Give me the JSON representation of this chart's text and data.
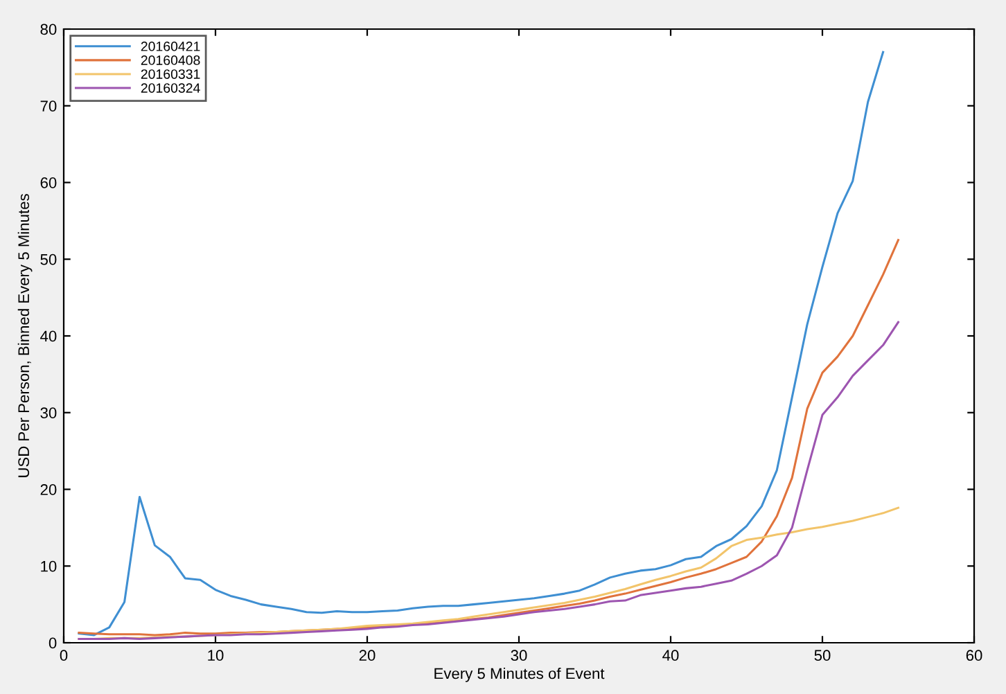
{
  "chart_data": {
    "type": "line",
    "xlabel": "Every 5 Minutes of Event",
    "ylabel": "USD Per Person, Binned Every 5 Minutes",
    "xlim": [
      0,
      60
    ],
    "ylim": [
      0,
      80
    ],
    "xticks": [
      0,
      10,
      20,
      30,
      40,
      50,
      60
    ],
    "yticks": [
      0,
      10,
      20,
      30,
      40,
      50,
      60,
      70,
      80
    ],
    "grid": false,
    "legend": "top left",
    "marker": "none",
    "line_style": "solid",
    "series": [
      {
        "name": "20160421",
        "color": "#3f8fd2",
        "x": [
          1,
          2,
          3,
          4,
          5,
          6,
          7,
          8,
          9,
          10,
          11,
          12,
          13,
          14,
          15,
          16,
          17,
          18,
          19,
          20,
          21,
          22,
          23,
          24,
          25,
          26,
          27,
          28,
          29,
          30,
          31,
          32,
          33,
          34,
          35,
          36,
          37,
          38,
          39,
          40,
          41,
          42,
          43,
          44,
          45,
          46,
          47,
          48,
          49,
          50,
          51,
          52,
          53,
          54
        ],
        "values": [
          1.2,
          1.0,
          2.0,
          5.3,
          19.0,
          12.7,
          11.2,
          8.4,
          8.2,
          6.9,
          6.1,
          5.6,
          5.0,
          4.7,
          4.4,
          4.0,
          3.9,
          4.1,
          4.0,
          4.0,
          4.1,
          4.2,
          4.5,
          4.7,
          4.8,
          4.8,
          5.0,
          5.2,
          5.4,
          5.6,
          5.8,
          6.1,
          6.4,
          6.8,
          7.6,
          8.5,
          9.0,
          9.4,
          9.6,
          10.1,
          10.9,
          11.2,
          12.6,
          13.5,
          15.2,
          17.8,
          22.5,
          32.0,
          41.5,
          49.0,
          56.0,
          60.2,
          70.5,
          77.0
        ]
      },
      {
        "name": "20160408",
        "color": "#e0733c",
        "x": [
          1,
          2,
          3,
          4,
          5,
          6,
          7,
          8,
          9,
          10,
          11,
          12,
          13,
          14,
          15,
          16,
          17,
          18,
          19,
          20,
          21,
          22,
          23,
          24,
          25,
          26,
          27,
          28,
          29,
          30,
          31,
          32,
          33,
          34,
          35,
          36,
          37,
          38,
          39,
          40,
          41,
          42,
          43,
          44,
          45,
          46,
          47,
          48,
          49,
          50,
          51,
          52,
          53,
          54,
          55
        ],
        "values": [
          1.3,
          1.2,
          1.1,
          1.1,
          1.1,
          1.0,
          1.1,
          1.3,
          1.2,
          1.2,
          1.3,
          1.3,
          1.4,
          1.4,
          1.5,
          1.6,
          1.7,
          1.8,
          1.9,
          2.0,
          2.1,
          2.3,
          2.4,
          2.5,
          2.7,
          2.9,
          3.1,
          3.3,
          3.6,
          3.9,
          4.2,
          4.5,
          4.8,
          5.1,
          5.5,
          6.0,
          6.4,
          6.9,
          7.4,
          7.9,
          8.5,
          9.0,
          9.6,
          10.4,
          11.2,
          13.2,
          16.5,
          21.5,
          30.5,
          35.2,
          37.3,
          40.0,
          44.0,
          48.0,
          52.5
        ]
      },
      {
        "name": "20160331",
        "color": "#f2c46a",
        "x": [
          1,
          2,
          3,
          4,
          5,
          6,
          7,
          8,
          9,
          10,
          11,
          12,
          13,
          14,
          15,
          16,
          17,
          18,
          19,
          20,
          21,
          22,
          23,
          24,
          25,
          26,
          27,
          28,
          29,
          30,
          31,
          32,
          33,
          34,
          35,
          36,
          37,
          38,
          39,
          40,
          41,
          42,
          43,
          44,
          45,
          46,
          47,
          48,
          49,
          50,
          51,
          52,
          53,
          54,
          55
        ],
        "values": [
          0.5,
          0.5,
          0.6,
          0.6,
          0.6,
          0.7,
          0.8,
          0.8,
          0.9,
          1.0,
          1.1,
          1.2,
          1.3,
          1.4,
          1.5,
          1.6,
          1.7,
          1.8,
          2.0,
          2.2,
          2.3,
          2.4,
          2.5,
          2.7,
          2.9,
          3.1,
          3.4,
          3.7,
          4.0,
          4.3,
          4.6,
          4.9,
          5.2,
          5.6,
          6.0,
          6.5,
          7.0,
          7.6,
          8.2,
          8.7,
          9.3,
          9.8,
          11.0,
          12.6,
          13.4,
          13.7,
          14.1,
          14.4,
          14.8,
          15.1,
          15.5,
          15.9,
          16.4,
          16.9,
          17.6
        ]
      },
      {
        "name": "20160324",
        "color": "#9d55b0",
        "x": [
          1,
          2,
          3,
          4,
          5,
          6,
          7,
          8,
          9,
          10,
          11,
          12,
          13,
          14,
          15,
          16,
          17,
          18,
          19,
          20,
          21,
          22,
          23,
          24,
          25,
          26,
          27,
          28,
          29,
          30,
          31,
          32,
          33,
          34,
          35,
          36,
          37,
          38,
          39,
          40,
          41,
          42,
          43,
          44,
          45,
          46,
          47,
          48,
          49,
          50,
          51,
          52,
          53,
          54,
          55
        ],
        "values": [
          0.5,
          0.5,
          0.5,
          0.6,
          0.5,
          0.6,
          0.7,
          0.8,
          0.9,
          1.0,
          1.0,
          1.1,
          1.1,
          1.2,
          1.3,
          1.4,
          1.5,
          1.6,
          1.7,
          1.8,
          2.0,
          2.1,
          2.3,
          2.4,
          2.6,
          2.8,
          3.0,
          3.2,
          3.4,
          3.7,
          4.0,
          4.2,
          4.4,
          4.7,
          5.0,
          5.4,
          5.5,
          6.2,
          6.5,
          6.8,
          7.1,
          7.3,
          7.7,
          8.1,
          9.0,
          10.0,
          11.4,
          15.0,
          22.5,
          29.7,
          32.0,
          34.8,
          36.8,
          38.8,
          41.8
        ]
      }
    ]
  }
}
